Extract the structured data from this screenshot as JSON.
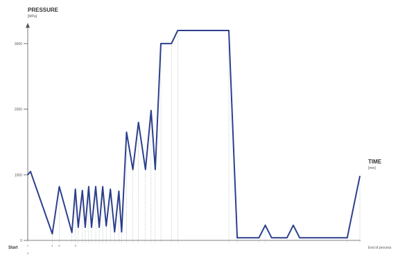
{
  "chart_data": {
    "type": "line",
    "ytitle": "PRESSURE",
    "yunit": "[MPa]",
    "xtitle": "TIME",
    "xunit": "[min]",
    "start_label": "Start",
    "end_label": "End of process",
    "ylim": [
      0,
      3200
    ],
    "yticks": [
      {
        "value": 0,
        "label": "0"
      },
      {
        "value": 1000,
        "label": "1000"
      },
      {
        "value": 2000,
        "label": "2000"
      },
      {
        "value": 3000,
        "label": "3000"
      }
    ],
    "xlim": [
      0,
      475
    ],
    "series": [
      {
        "color": "#2c3f8c",
        "points": [
          [
            0,
            1000
          ],
          [
            4,
            1050
          ],
          [
            35,
            100
          ],
          [
            45,
            820
          ],
          [
            63,
            120
          ],
          [
            68,
            780
          ],
          [
            72,
            200
          ],
          [
            78,
            760
          ],
          [
            82,
            200
          ],
          [
            87,
            820
          ],
          [
            91,
            200
          ],
          [
            97,
            820
          ],
          [
            102,
            200
          ],
          [
            107,
            820
          ],
          [
            112,
            220
          ],
          [
            118,
            780
          ],
          [
            124,
            130
          ],
          [
            130,
            750
          ],
          [
            134,
            130
          ],
          [
            141,
            1650
          ],
          [
            150,
            1080
          ],
          [
            158,
            1800
          ],
          [
            168,
            1080
          ],
          [
            176,
            1980
          ],
          [
            182,
            1080
          ],
          [
            190,
            3000
          ],
          [
            205,
            3000
          ],
          [
            214,
            3200
          ],
          [
            287,
            3200
          ],
          [
            299,
            40
          ],
          [
            330,
            40
          ],
          [
            339,
            230
          ],
          [
            348,
            40
          ],
          [
            370,
            40
          ],
          [
            379,
            230
          ],
          [
            388,
            40
          ],
          [
            456,
            40
          ],
          [
            474,
            980
          ]
        ]
      }
    ],
    "event_times": [
      0,
      35,
      45,
      63,
      68,
      72,
      78,
      82,
      87,
      91,
      97,
      102,
      107,
      112,
      118,
      124,
      130,
      134,
      141,
      150,
      158,
      168,
      176,
      182,
      190,
      205,
      214,
      287,
      299,
      330,
      339,
      456,
      474
    ],
    "event_labels_top": [
      "1",
      "4",
      "6",
      "",
      "8",
      "",
      "",
      "",
      "",
      "",
      "",
      "",
      "",
      "",
      "",
      "",
      "",
      "",
      "",
      "",
      "",
      "",
      "",
      "",
      "",
      "",
      "",
      "",
      "",
      "",
      "",
      "",
      ""
    ],
    "event_labels_bottom": [
      "0",
      "",
      "",
      "",
      "",
      "",
      "",
      "",
      "",
      "",
      "",
      "",
      "",
      "",
      "",
      "",
      "",
      "",
      "",
      "",
      "",
      "",
      "",
      "",
      "",
      "",
      "",
      "",
      "",
      "",
      "",
      "",
      ""
    ]
  }
}
